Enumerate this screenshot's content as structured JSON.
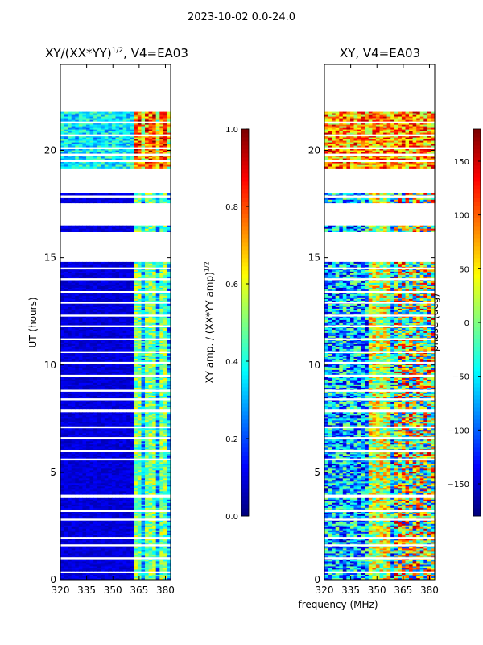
{
  "figure_title": "2023-10-02 0.0-24.0",
  "chart_data": [
    {
      "type": "heatmap",
      "title": "XY/(XX*YY)1/2, V4=EA03",
      "title_main": "XY/(XX*YY)",
      "title_sup": "1/2",
      "title_tail": ", V4=EA03",
      "xlabel": "frequency (MHz)",
      "ylabel": "UT (hours)",
      "xlim": [
        320,
        383
      ],
      "ylim": [
        0,
        24
      ],
      "xticks": [
        "320",
        "335",
        "350",
        "365",
        "380"
      ],
      "yticks": [
        "0",
        "5",
        "10",
        "15",
        "20"
      ],
      "colorbar": {
        "label": "XY amp. / (XX*YY amp)1/2",
        "label_main": "XY amp. / (XX*YY amp)",
        "label_sup": "1/2",
        "range": [
          0.0,
          1.0
        ],
        "ticks": [
          "0.0",
          "0.2",
          "0.4",
          "0.6",
          "0.8",
          "1.0"
        ]
      }
    },
    {
      "type": "heatmap",
      "title": "XY, V4=EA03",
      "xlabel": "frequency (MHz)",
      "xlim": [
        320,
        383
      ],
      "ylim": [
        0,
        24
      ],
      "xticks": [
        "320",
        "335",
        "350",
        "365",
        "380"
      ],
      "yticks": [
        "0",
        "5",
        "10",
        "15",
        "20"
      ],
      "colorbar": {
        "label": "phase (deg)",
        "range": [
          -180,
          180
        ],
        "ticks": [
          "-150",
          "-100",
          "-50",
          "0",
          "50",
          "100",
          "150"
        ]
      }
    }
  ],
  "colormap": "jet",
  "data_bands_hours": [
    [
      21.8,
      19.2
    ],
    [
      18.0,
      17.6
    ],
    [
      16.5,
      16.2
    ],
    [
      14.8,
      8.0
    ],
    [
      7.8,
      4.0
    ],
    [
      3.8,
      2.0
    ],
    [
      1.9,
      0.45
    ],
    [
      0.3,
      0.0
    ]
  ],
  "gap_lines_hours": [
    21.3,
    20.7,
    20.1,
    19.8,
    19.5,
    17.85,
    14.5,
    14.0,
    13.4,
    12.9,
    12.3,
    11.8,
    11.2,
    10.6,
    10.1,
    9.5,
    8.8,
    8.4,
    7.1,
    6.6,
    6.0,
    5.6,
    3.2,
    2.8,
    1.6,
    1.0
  ],
  "rfi_channels_mhz": [
    362.5,
    363.5,
    366,
    369,
    370.5,
    372,
    374,
    377,
    380.5
  ]
}
